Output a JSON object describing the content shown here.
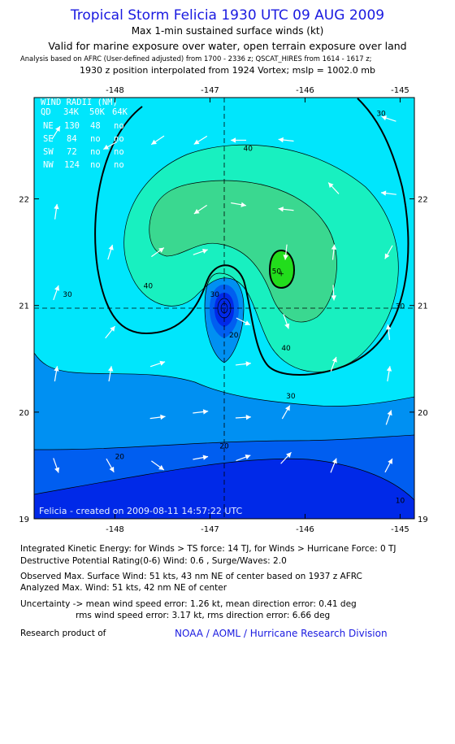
{
  "header": {
    "title": "Tropical Storm Felicia 1930 UTC 09 AUG 2009",
    "subtitle": "Max 1-min sustained surface winds (kt)",
    "valid": "Valid for marine exposure over water, open terrain exposure over land",
    "analysis": "Analysis based on  AFRC (User-defined adjusted) from 1700 - 2336 z;  QSCAT_HIRES from 1614 - 1617 z;",
    "position": "1930 z position interpolated from 1924 Vortex; mslp = 1002.0 mb"
  },
  "map": {
    "created": "Felicia - created on 2009-08-11 14:57:22 UTC",
    "center_marker": "+"
  },
  "wind_radii": {
    "title": "WIND RADII (NM)",
    "header": [
      "QD",
      "34K",
      "50K",
      "64K"
    ],
    "rows": [
      [
        "NE",
        "130",
        "48",
        "no"
      ],
      [
        "SE",
        "84",
        "no",
        "no"
      ],
      [
        "SW",
        "72",
        "no",
        "no"
      ],
      [
        "NW",
        "124",
        "no",
        "no"
      ]
    ]
  },
  "chart_data": {
    "type": "contour",
    "title": "Tropical Storm Felicia 1930 UTC 09 AUG 2009",
    "variable": "Max 1-min sustained surface winds (kt)",
    "xlim": [
      -148.85,
      -144.85
    ],
    "ylim": [
      19.0,
      22.95
    ],
    "x_ticks": [
      -148,
      -147,
      -146,
      -145
    ],
    "y_ticks": [
      19,
      20,
      21,
      22
    ],
    "x_tick_labels": [
      "-148",
      "-147",
      "-146",
      "-145"
    ],
    "y_tick_labels": [
      "19",
      "20",
      "21",
      "22"
    ],
    "storm_center": {
      "lon": -146.85,
      "lat": 20.92
    },
    "max_wind_center": {
      "lon": -146.25,
      "lat": 21.3
    },
    "contour_levels": [
      10,
      20,
      30,
      40,
      50
    ],
    "contour_labels": [
      {
        "text": "30",
        "lon": -145.2,
        "lat": 22.78
      },
      {
        "text": "40",
        "lon": -146.6,
        "lat": 22.45
      },
      {
        "text": "50",
        "lon": -146.3,
        "lat": 21.3
      },
      {
        "text": "40",
        "lon": -147.65,
        "lat": 21.16
      },
      {
        "text": "30",
        "lon": -146.95,
        "lat": 21.08
      },
      {
        "text": "30",
        "lon": -148.5,
        "lat": 21.08
      },
      {
        "text": "30",
        "lon": -145.0,
        "lat": 20.97
      },
      {
        "text": "20",
        "lon": -146.75,
        "lat": 20.7
      },
      {
        "text": "40",
        "lon": -146.2,
        "lat": 20.58
      },
      {
        "text": "30",
        "lon": -146.15,
        "lat": 20.13
      },
      {
        "text": "20",
        "lon": -146.85,
        "lat": 19.66
      },
      {
        "text": "20",
        "lon": -147.95,
        "lat": 19.56
      },
      {
        "text": "10",
        "lon": -145.0,
        "lat": 19.15
      }
    ],
    "bands": [
      {
        "range": "0-10",
        "color": "#0029e8"
      },
      {
        "range": "10-20",
        "color": "#005ef0"
      },
      {
        "range": "20-30",
        "color": "#0090f2"
      },
      {
        "range": "30-40",
        "color": "#00e6fc"
      },
      {
        "range": "40-45",
        "color": "#18f0c0"
      },
      {
        "range": "45-50",
        "color": "#3ad890"
      },
      {
        "range": "50+",
        "color": "#22dd1c"
      }
    ],
    "wind_barbs": [
      {
        "lon": -148.62,
        "lat": 22.62,
        "u": 1,
        "v": 1.6
      },
      {
        "lon": -148.62,
        "lat": 21.88,
        "u": 0.25,
        "v": 1.8
      },
      {
        "lon": -148.62,
        "lat": 21.12,
        "u": 0.6,
        "v": 1.7
      },
      {
        "lon": -148.62,
        "lat": 20.36,
        "u": 0.3,
        "v": 1.8
      },
      {
        "lon": -148.62,
        "lat": 19.5,
        "u": 0.6,
        "v": -1.7
      },
      {
        "lon": -148.05,
        "lat": 22.5,
        "u": -1.8,
        "v": -1.0
      },
      {
        "lon": -148.05,
        "lat": 21.5,
        "u": 0.5,
        "v": 1.6
      },
      {
        "lon": -148.05,
        "lat": 20.75,
        "u": 1.2,
        "v": 1.5
      },
      {
        "lon": -148.05,
        "lat": 20.36,
        "u": 0.3,
        "v": 1.8
      },
      {
        "lon": -148.05,
        "lat": 19.5,
        "u": 0.9,
        "v": -1.6
      },
      {
        "lon": -147.55,
        "lat": 22.55,
        "u": -1.5,
        "v": -1.0
      },
      {
        "lon": -147.55,
        "lat": 21.5,
        "u": 1.4,
        "v": 1.0
      },
      {
        "lon": -147.55,
        "lat": 20.45,
        "u": 1.8,
        "v": 0.6
      },
      {
        "lon": -147.55,
        "lat": 19.95,
        "u": 1.6,
        "v": 0.2
      },
      {
        "lon": -147.55,
        "lat": 19.5,
        "u": 1.4,
        "v": -1.0
      },
      {
        "lon": -147.1,
        "lat": 22.55,
        "u": -1.6,
        "v": -1.0
      },
      {
        "lon": -147.1,
        "lat": 21.9,
        "u": -1.5,
        "v": -1.0
      },
      {
        "lon": -147.1,
        "lat": 21.5,
        "u": 1.7,
        "v": 0.6
      },
      {
        "lon": -147.1,
        "lat": 20.0,
        "u": 1.7,
        "v": 0.2
      },
      {
        "lon": -147.1,
        "lat": 19.57,
        "u": 1.6,
        "v": 0.3
      },
      {
        "lon": -146.7,
        "lat": 22.55,
        "u": -1.8,
        "v": 0
      },
      {
        "lon": -146.7,
        "lat": 21.95,
        "u": 1.7,
        "v": -0.3
      },
      {
        "lon": -146.65,
        "lat": 20.85,
        "u": 1.6,
        "v": -0.8
      },
      {
        "lon": -146.65,
        "lat": 20.45,
        "u": 1.7,
        "v": 0.2
      },
      {
        "lon": -146.65,
        "lat": 19.95,
        "u": 1.6,
        "v": 0.1
      },
      {
        "lon": -146.65,
        "lat": 19.57,
        "u": 1.6,
        "v": 0.6
      },
      {
        "lon": -146.2,
        "lat": 22.55,
        "u": -1.8,
        "v": 0.2
      },
      {
        "lon": -146.2,
        "lat": 21.9,
        "u": -1.8,
        "v": 0.2
      },
      {
        "lon": -146.2,
        "lat": 21.5,
        "u": -0.2,
        "v": -1.8
      },
      {
        "lon": -146.2,
        "lat": 20.85,
        "u": 0.6,
        "v": -1.7
      },
      {
        "lon": -146.2,
        "lat": 20.0,
        "u": 0.8,
        "v": 1.4
      },
      {
        "lon": -146.2,
        "lat": 19.57,
        "u": 1.2,
        "v": 1.3
      },
      {
        "lon": -145.7,
        "lat": 22.1,
        "u": -1.2,
        "v": 1.3
      },
      {
        "lon": -145.7,
        "lat": 21.5,
        "u": 0.2,
        "v": 1.8
      },
      {
        "lon": -145.7,
        "lat": 21.12,
        "u": 0.1,
        "v": -1.8
      },
      {
        "lon": -145.7,
        "lat": 20.45,
        "u": 0.6,
        "v": 1.6
      },
      {
        "lon": -145.7,
        "lat": 19.5,
        "u": 0.6,
        "v": 1.5
      },
      {
        "lon": -145.12,
        "lat": 22.75,
        "u": -1.8,
        "v": 0.6
      },
      {
        "lon": -145.12,
        "lat": 22.05,
        "u": -1.6,
        "v": 0.2
      },
      {
        "lon": -145.12,
        "lat": 21.5,
        "u": -0.9,
        "v": -1.6
      },
      {
        "lon": -145.12,
        "lat": 20.75,
        "u": -0.2,
        "v": 1.8
      },
      {
        "lon": -145.12,
        "lat": 20.36,
        "u": 0.3,
        "v": 1.8
      },
      {
        "lon": -145.12,
        "lat": 19.95,
        "u": 0.6,
        "v": 1.7
      },
      {
        "lon": -145.12,
        "lat": 19.5,
        "u": 0.8,
        "v": 1.5
      }
    ]
  },
  "footer": {
    "ike": "Integrated Kinetic Energy:  for Winds > TS force: 14 TJ,  for Winds > Hurricane Force: 0 TJ",
    "dpr": "Destructive Potential Rating(0-6)   Wind: 0.6 , Surge/Waves: 2.0",
    "observed": "Observed Max. Surface Wind: 51 kts, 43 nm NE of center based on 1937 z AFRC",
    "analyzed": "Analyzed Max. Wind: 51 kts, 42 nm NE of center",
    "uncertainty1": "Uncertainty -> mean wind speed error: 1.26 kt,   mean direction error: 0.41 deg",
    "uncertainty2": "rms wind speed error: 3.17 kt,   rms direction error: 6.66 deg",
    "research": "Research product of",
    "research_link": "NOAA / AOML / Hurricane Research Division"
  }
}
